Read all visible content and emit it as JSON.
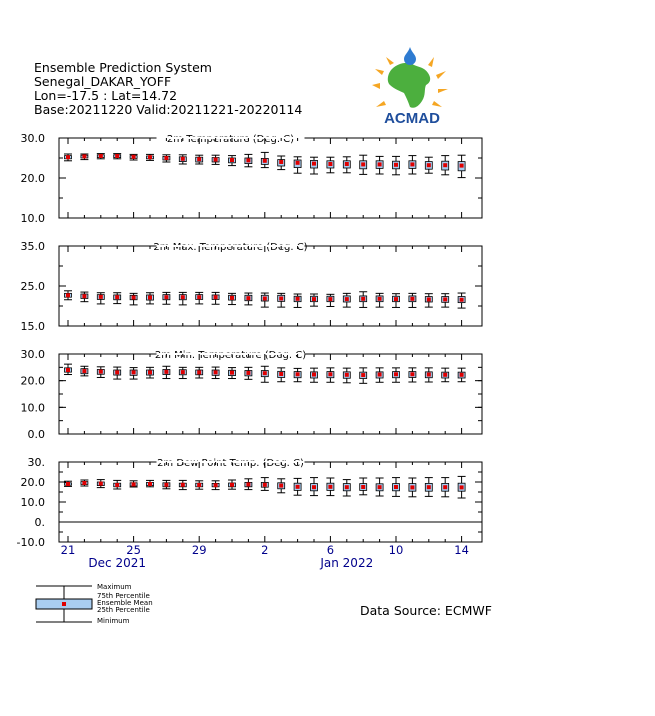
{
  "header": {
    "line1": "Ensemble Prediction System",
    "line2": "Senegal_DAKAR_YOFF",
    "line3": "Lon=-17.5 : Lat=14.72",
    "line4": "Base:20211220 Valid:20211221-20220114"
  },
  "logo": {
    "text": "ACMAD",
    "colors": {
      "africa": "#4caf3e",
      "sun": "#f5a623",
      "text": "#1f4e9c",
      "water": "#2e7bd1"
    }
  },
  "source": "Data Source: ECMWF",
  "legend": {
    "maximum": "Maximum",
    "p75": "75th Percentile",
    "mean": "Ensemble Mean",
    "p25": "25th Percentile",
    "minimum": "Minimum"
  },
  "colors": {
    "box_fill": "#a9cdf0",
    "mean": "#e00000",
    "axis_date": "#00008b"
  },
  "x_axis": {
    "tick_labels": [
      {
        "label": "21",
        "day": 0
      },
      {
        "label": "25",
        "day": 4
      },
      {
        "label": "29",
        "day": 8
      },
      {
        "label": "2",
        "day": 12
      },
      {
        "label": "6",
        "day": 16
      },
      {
        "label": "10",
        "day": 20
      },
      {
        "label": "14",
        "day": 24
      }
    ],
    "month_labels": [
      {
        "label": "Dec 2021",
        "day": 3
      },
      {
        "label": "Jan 2022",
        "day": 17
      }
    ]
  },
  "chart_data": [
    {
      "type": "boxplot",
      "title": "2m Temperature (Deg. C)",
      "ylim": [
        10,
        30
      ],
      "yticks": [
        "10.0",
        "20.0",
        "30.0"
      ],
      "x_start": "2021-12-21",
      "mean": [
        25.2,
        25.4,
        25.5,
        25.5,
        25.3,
        25.2,
        25.0,
        24.8,
        24.7,
        24.6,
        24.5,
        24.4,
        24.3,
        24.0,
        23.8,
        23.6,
        23.5,
        23.5,
        23.4,
        23.4,
        23.3,
        23.4,
        23.2,
        23.2,
        23.1
      ],
      "p25": [
        24.8,
        25.0,
        25.1,
        25.1,
        24.9,
        24.8,
        24.5,
        24.1,
        24.0,
        24.0,
        23.8,
        23.6,
        23.4,
        23.0,
        22.6,
        22.5,
        22.5,
        22.5,
        22.3,
        22.4,
        22.3,
        22.4,
        22.2,
        22.0,
        21.8
      ],
      "p75": [
        25.6,
        25.7,
        25.8,
        25.8,
        25.6,
        25.5,
        25.4,
        25.3,
        25.2,
        25.1,
        25.0,
        25.0,
        24.9,
        24.6,
        24.5,
        24.4,
        24.3,
        24.3,
        24.3,
        24.3,
        24.2,
        24.3,
        24.1,
        24.2,
        24.1
      ],
      "min": [
        24.3,
        24.6,
        24.8,
        24.8,
        24.5,
        24.4,
        24.0,
        23.5,
        23.5,
        23.4,
        23.1,
        22.8,
        22.6,
        22.1,
        21.2,
        21.0,
        21.3,
        21.3,
        20.9,
        21.0,
        20.8,
        21.0,
        21.2,
        20.8,
        20.1
      ],
      "max": [
        26.0,
        26.0,
        26.1,
        26.1,
        25.9,
        25.9,
        25.8,
        25.8,
        25.7,
        25.7,
        25.6,
        25.9,
        26.4,
        25.5,
        25.3,
        25.2,
        25.2,
        25.3,
        25.7,
        25.4,
        25.4,
        25.6,
        25.2,
        25.6,
        25.7
      ]
    },
    {
      "type": "boxplot",
      "title": "2m Max. Temperature (Deg. C)",
      "ylim": [
        15,
        40
      ],
      "yticks": [
        "15.0",
        "25.0",
        "35.0"
      ],
      "x_start": "2021-12-21",
      "mean": [
        24.6,
        24.3,
        24.1,
        24.0,
        23.9,
        23.9,
        24.0,
        24.0,
        24.0,
        24.0,
        23.8,
        23.7,
        23.6,
        23.6,
        23.5,
        23.4,
        23.4,
        23.4,
        23.5,
        23.5,
        23.4,
        23.5,
        23.3,
        23.3,
        23.2
      ],
      "p25": [
        24.0,
        23.6,
        23.3,
        23.2,
        23.2,
        23.1,
        23.2,
        23.2,
        23.3,
        23.3,
        23.1,
        22.9,
        22.8,
        22.7,
        22.6,
        22.6,
        22.6,
        22.5,
        22.6,
        22.6,
        22.6,
        22.6,
        22.5,
        22.4,
        22.3
      ],
      "p75": [
        25.2,
        25.0,
        24.8,
        24.7,
        24.6,
        24.7,
        24.8,
        24.8,
        24.8,
        24.7,
        24.6,
        24.6,
        24.6,
        24.6,
        24.3,
        24.3,
        24.3,
        24.4,
        24.4,
        24.4,
        24.3,
        24.4,
        24.2,
        24.2,
        24.2
      ],
      "min": [
        23.2,
        22.6,
        21.9,
        22.0,
        21.6,
        21.9,
        21.8,
        21.6,
        21.9,
        21.8,
        21.7,
        21.6,
        20.9,
        20.9,
        20.8,
        21.2,
        21.1,
        20.9,
        20.8,
        20.9,
        20.8,
        20.8,
        20.9,
        20.9,
        20.6
      ],
      "max": [
        26.0,
        25.6,
        25.4,
        25.4,
        25.2,
        25.4,
        25.5,
        25.5,
        25.5,
        25.5,
        25.2,
        25.3,
        25.3,
        25.2,
        25.0,
        25.0,
        24.9,
        25.2,
        25.7,
        25.2,
        25.1,
        25.2,
        25.1,
        25.1,
        25.3
      ]
    },
    {
      "type": "boxplot",
      "title": "2m Min. Temperature (Deg. C)",
      "ylim": [
        0,
        30
      ],
      "yticks": [
        "0.0",
        "10.0",
        "20.0",
        "30.0"
      ],
      "x_start": "2021-12-21",
      "mean": [
        24.0,
        23.6,
        23.4,
        23.1,
        23.1,
        23.1,
        23.3,
        23.2,
        23.1,
        23.1,
        23.0,
        22.9,
        22.8,
        22.5,
        22.4,
        22.3,
        22.4,
        22.2,
        22.1,
        22.3,
        22.4,
        22.4,
        22.3,
        22.2,
        22.2
      ],
      "p25": [
        23.2,
        22.6,
        22.4,
        22.1,
        22.0,
        22.1,
        22.3,
        22.2,
        22.2,
        22.0,
        21.9,
        21.8,
        21.5,
        21.2,
        21.1,
        21.0,
        21.1,
        20.9,
        20.8,
        21.0,
        21.1,
        21.2,
        21.1,
        21.0,
        21.0
      ],
      "p75": [
        24.8,
        24.5,
        24.2,
        24.0,
        24.0,
        24.0,
        24.2,
        24.1,
        24.0,
        24.0,
        23.9,
        23.8,
        23.8,
        23.5,
        23.4,
        23.3,
        23.4,
        23.3,
        23.2,
        23.3,
        23.4,
        23.4,
        23.3,
        23.2,
        23.2
      ],
      "min": [
        22.3,
        21.8,
        21.2,
        20.6,
        20.6,
        21.0,
        20.8,
        20.8,
        21.0,
        20.8,
        20.8,
        20.5,
        19.4,
        19.6,
        19.6,
        19.4,
        19.4,
        19.2,
        19.0,
        19.4,
        19.4,
        19.5,
        19.5,
        19.6,
        19.6
      ],
      "max": [
        26.2,
        25.4,
        25.2,
        25.1,
        24.9,
        25.0,
        25.4,
        25.0,
        25.0,
        25.1,
        24.9,
        25.0,
        25.4,
        24.8,
        24.6,
        24.7,
        24.8,
        24.7,
        24.8,
        24.8,
        24.8,
        24.8,
        24.8,
        24.7,
        24.7
      ]
    },
    {
      "type": "boxplot",
      "title": "2m Dew Point Temp. (Deg. C)",
      "ylim": [
        -10,
        30
      ],
      "yticks": [
        "-10.0",
        "0.",
        "10.0",
        "20.0",
        "30."
      ],
      "x_start": "2021-12-21",
      "mean": [
        19.0,
        19.5,
        19.2,
        18.5,
        18.8,
        19.0,
        18.6,
        18.6,
        18.5,
        18.4,
        18.6,
        18.8,
        18.6,
        18.2,
        17.6,
        17.4,
        17.6,
        17.4,
        17.5,
        17.4,
        17.5,
        17.3,
        17.4,
        17.4,
        17.3
      ],
      "p25": [
        18.4,
        18.8,
        18.2,
        17.6,
        18.0,
        18.2,
        17.6,
        17.6,
        17.6,
        17.6,
        17.6,
        17.6,
        17.4,
        16.6,
        15.8,
        15.6,
        15.8,
        15.6,
        15.8,
        15.6,
        15.6,
        15.4,
        15.4,
        15.4,
        15.4
      ],
      "p75": [
        19.6,
        20.2,
        20.0,
        19.4,
        19.6,
        19.8,
        19.6,
        19.4,
        19.4,
        19.3,
        19.5,
        19.8,
        19.8,
        19.6,
        19.4,
        19.2,
        19.4,
        19.2,
        19.2,
        19.1,
        19.2,
        19.2,
        19.3,
        19.3,
        19.4
      ],
      "min": [
        17.8,
        18.0,
        17.2,
        16.5,
        17.5,
        17.6,
        16.6,
        16.2,
        16.4,
        16.2,
        16.4,
        16.2,
        15.8,
        14.6,
        13.4,
        13.2,
        13.2,
        13.0,
        13.6,
        13.0,
        12.8,
        12.6,
        12.8,
        12.6,
        12.0
      ],
      "max": [
        20.4,
        21.0,
        21.2,
        20.8,
        20.6,
        20.8,
        20.8,
        20.8,
        20.6,
        20.6,
        21.0,
        21.6,
        22.2,
        21.6,
        21.8,
        22.2,
        22.0,
        21.2,
        22.0,
        22.0,
        22.2,
        22.0,
        22.2,
        22.2,
        22.8
      ]
    }
  ]
}
